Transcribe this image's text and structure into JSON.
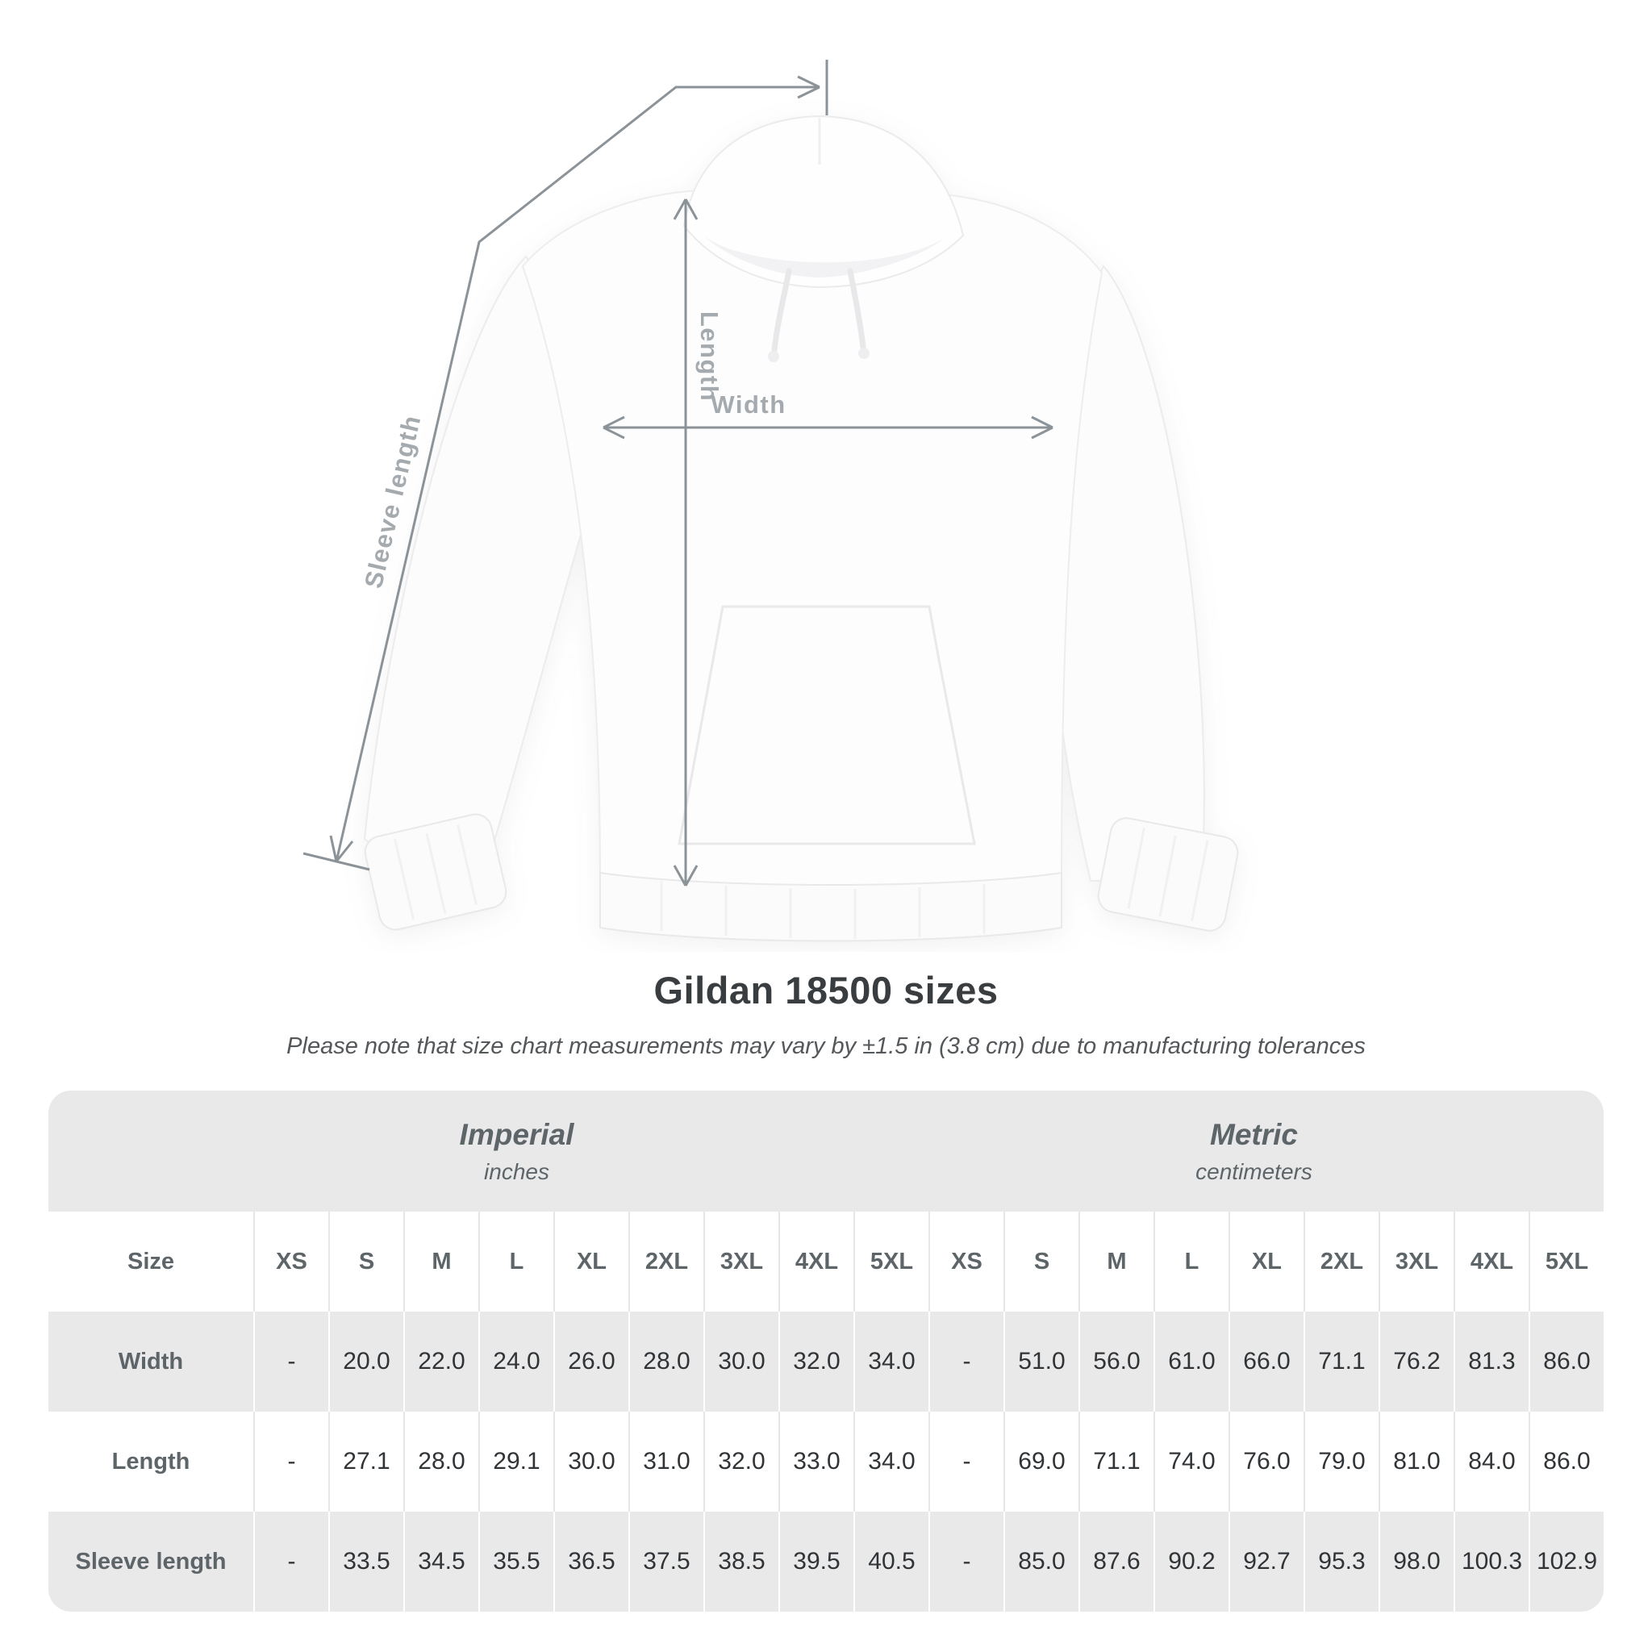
{
  "title": "Gildan 18500 sizes",
  "subtitle": "Please note that size chart measurements may vary by ±1.5 in (3.8 cm) due to manufacturing tolerances",
  "diagram": {
    "labels": {
      "width": "Width",
      "length": "Length",
      "sleeve": "Sleeve length"
    },
    "line_color": "#8c9398",
    "label_color": "#a4aaae",
    "garment": "white pullover hoodie, front view"
  },
  "table": {
    "size_header": "Size",
    "groups": [
      {
        "name": "Imperial",
        "unit": "inches"
      },
      {
        "name": "Metric",
        "unit": "centimeters"
      }
    ],
    "sizes": [
      "XS",
      "S",
      "M",
      "L",
      "XL",
      "2XL",
      "3XL",
      "4XL",
      "5XL"
    ],
    "rows": [
      {
        "key": "width",
        "label": "Width",
        "imperial": [
          "-",
          "20.0",
          "22.0",
          "24.0",
          "26.0",
          "28.0",
          "30.0",
          "32.0",
          "34.0"
        ],
        "metric": [
          "-",
          "51.0",
          "56.0",
          "61.0",
          "66.0",
          "71.1",
          "76.2",
          "81.3",
          "86.0"
        ]
      },
      {
        "key": "length",
        "label": "Length",
        "imperial": [
          "-",
          "27.1",
          "28.0",
          "29.1",
          "30.0",
          "31.0",
          "32.0",
          "33.0",
          "34.0"
        ],
        "metric": [
          "-",
          "69.0",
          "71.1",
          "74.0",
          "76.0",
          "79.0",
          "81.0",
          "84.0",
          "86.0"
        ]
      },
      {
        "key": "sleeve-length",
        "label": "Sleeve length",
        "imperial": [
          "-",
          "33.5",
          "34.5",
          "35.5",
          "36.5",
          "37.5",
          "38.5",
          "39.5",
          "40.5"
        ],
        "metric": [
          "-",
          "85.0",
          "87.6",
          "90.2",
          "92.7",
          "95.3",
          "98.0",
          "100.3",
          "102.9"
        ]
      }
    ],
    "colors": {
      "band": "#e9e9ea",
      "stripe": "#e9e9ea",
      "label_text": "#5d6569",
      "value_text": "#303437"
    }
  },
  "chart_data": {
    "type": "table",
    "title": "Gildan 18500 sizes",
    "note": "Size chart measurements may vary by ±1.5 in (3.8 cm) due to manufacturing tolerances",
    "unit_groups": [
      {
        "name": "Imperial",
        "unit": "inches"
      },
      {
        "name": "Metric",
        "unit": "centimeters"
      }
    ],
    "sizes": [
      "XS",
      "S",
      "M",
      "L",
      "XL",
      "2XL",
      "3XL",
      "4XL",
      "5XL"
    ],
    "measurements": [
      {
        "label": "Width",
        "imperial_in": [
          null,
          20.0,
          22.0,
          24.0,
          26.0,
          28.0,
          30.0,
          32.0,
          34.0
        ],
        "metric_cm": [
          null,
          51.0,
          56.0,
          61.0,
          66.0,
          71.1,
          76.2,
          81.3,
          86.0
        ]
      },
      {
        "label": "Length",
        "imperial_in": [
          null,
          27.1,
          28.0,
          29.1,
          30.0,
          31.0,
          32.0,
          33.0,
          34.0
        ],
        "metric_cm": [
          null,
          69.0,
          71.1,
          74.0,
          76.0,
          79.0,
          81.0,
          84.0,
          86.0
        ]
      },
      {
        "label": "Sleeve length",
        "imperial_in": [
          null,
          33.5,
          34.5,
          35.5,
          36.5,
          37.5,
          38.5,
          39.5,
          40.5
        ],
        "metric_cm": [
          null,
          85.0,
          87.6,
          90.2,
          92.7,
          95.3,
          98.0,
          100.3,
          102.9
        ]
      }
    ]
  }
}
